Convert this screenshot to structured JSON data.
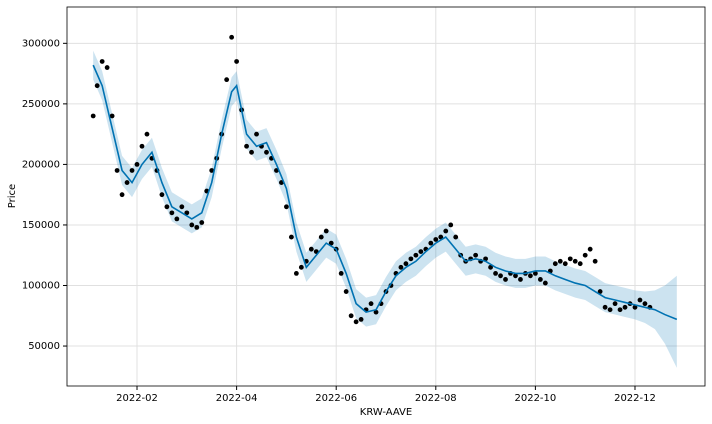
{
  "chart_data": {
    "type": "line",
    "xlabel": "KRW-AAVE",
    "ylabel": "Price",
    "xlim": [
      0.594,
      13.406
    ],
    "ylim": [
      17000,
      330000
    ],
    "xticks": [
      {
        "value": 2,
        "label": "2022-02"
      },
      {
        "value": 4,
        "label": "2022-04"
      },
      {
        "value": 6,
        "label": "2022-06"
      },
      {
        "value": 8,
        "label": "2022-08"
      },
      {
        "value": 10,
        "label": "2022-10"
      },
      {
        "value": 12,
        "label": "2022-12"
      }
    ],
    "yticks": [
      50000,
      100000,
      150000,
      200000,
      250000,
      300000
    ],
    "grid": true,
    "series": [
      {
        "type": "band",
        "color": "#0072b2",
        "x": [
          1.12,
          1.3,
          1.5,
          1.7,
          1.9,
          2.1,
          2.3,
          2.5,
          2.7,
          2.9,
          3.1,
          3.3,
          3.5,
          3.7,
          3.9,
          4.0,
          4.2,
          4.4,
          4.6,
          4.8,
          5.0,
          5.2,
          5.4,
          5.6,
          5.8,
          6.0,
          6.2,
          6.4,
          6.6,
          6.8,
          7.0,
          7.2,
          7.4,
          7.6,
          7.8,
          8.0,
          8.2,
          8.4,
          8.6,
          8.8,
          9.0,
          9.2,
          9.4,
          9.6,
          9.8,
          10.0,
          10.2,
          10.4,
          10.6,
          10.8,
          11.0,
          11.2,
          11.4,
          11.6,
          11.8,
          12.0,
          12.2,
          12.4,
          12.6,
          12.84
        ],
        "upper": [
          294000,
          277000,
          242000,
          207000,
          197000,
          212000,
          222000,
          197000,
          177000,
          172000,
          167000,
          172000,
          197000,
          237000,
          272000,
          277000,
          237000,
          227000,
          230000,
          212000,
          192000,
          152000,
          127000,
          137000,
          147000,
          142000,
          122000,
          97000,
          90000,
          92000,
          107000,
          120000,
          127000,
          132000,
          140000,
          147000,
          152000,
          142000,
          132000,
          134000,
          132000,
          127000,
          124000,
          122000,
          122000,
          124000,
          124000,
          120000,
          117000,
          114000,
          112000,
          107000,
          102000,
          100000,
          98000,
          96000,
          95000,
          96000,
          100000,
          108000
        ],
        "lower": [
          270000,
          253000,
          218000,
          183000,
          173000,
          188000,
          198000,
          173000,
          153000,
          148000,
          143000,
          148000,
          173000,
          213000,
          248000,
          253000,
          213000,
          203000,
          206000,
          188000,
          168000,
          128000,
          103000,
          113000,
          123000,
          118000,
          98000,
          73000,
          66000,
          68000,
          83000,
          96000,
          103000,
          108000,
          116000,
          123000,
          128000,
          118000,
          108000,
          110000,
          108000,
          103000,
          100000,
          98000,
          98000,
          100000,
          100000,
          96000,
          93000,
          90000,
          88000,
          83000,
          78000,
          76000,
          74000,
          72000,
          69000,
          64000,
          52000,
          32000
        ]
      },
      {
        "type": "scatter",
        "color": "#000000",
        "x": [
          1.12,
          1.2,
          1.3,
          1.4,
          1.5,
          1.6,
          1.7,
          1.8,
          1.9,
          2.0,
          2.1,
          2.2,
          2.3,
          2.4,
          2.5,
          2.6,
          2.7,
          2.8,
          2.9,
          3.0,
          3.1,
          3.2,
          3.3,
          3.4,
          3.5,
          3.6,
          3.7,
          3.8,
          3.9,
          4.0,
          4.1,
          4.2,
          4.3,
          4.4,
          4.5,
          4.6,
          4.7,
          4.8,
          4.9,
          5.0,
          5.1,
          5.2,
          5.3,
          5.4,
          5.5,
          5.6,
          5.7,
          5.8,
          5.9,
          6.0,
          6.1,
          6.2,
          6.3,
          6.4,
          6.5,
          6.6,
          6.7,
          6.8,
          6.9,
          7.0,
          7.1,
          7.2,
          7.3,
          7.4,
          7.5,
          7.6,
          7.7,
          7.8,
          7.9,
          8.0,
          8.1,
          8.2,
          8.3,
          8.4,
          8.5,
          8.6,
          8.7,
          8.8,
          8.9,
          9.0,
          9.1,
          9.2,
          9.3,
          9.4,
          9.5,
          9.6,
          9.7,
          9.8,
          9.9,
          10.0,
          10.1,
          10.2,
          10.3,
          10.4,
          10.5,
          10.6,
          10.7,
          10.8,
          10.9,
          11.0,
          11.1,
          11.2,
          11.3,
          11.4,
          11.5,
          11.6,
          11.7,
          11.8,
          11.9,
          12.0,
          12.1,
          12.2,
          12.3
        ],
        "values": [
          240000,
          265000,
          285000,
          280000,
          240000,
          195000,
          175000,
          185000,
          195000,
          200000,
          215000,
          225000,
          205000,
          195000,
          175000,
          165000,
          160000,
          155000,
          165000,
          160000,
          150000,
          148000,
          152000,
          178000,
          195000,
          205000,
          225000,
          270000,
          305000,
          285000,
          245000,
          215000,
          210000,
          225000,
          215000,
          210000,
          205000,
          195000,
          185000,
          165000,
          140000,
          110000,
          115000,
          120000,
          130000,
          128000,
          140000,
          145000,
          135000,
          130000,
          110000,
          95000,
          75000,
          70000,
          72000,
          80000,
          85000,
          78000,
          85000,
          95000,
          100000,
          110000,
          115000,
          118000,
          122000,
          125000,
          128000,
          130000,
          135000,
          138000,
          140000,
          145000,
          150000,
          140000,
          125000,
          120000,
          122000,
          125000,
          120000,
          122000,
          115000,
          110000,
          108000,
          105000,
          110000,
          108000,
          105000,
          110000,
          108000,
          110000,
          105000,
          102000,
          112000,
          118000,
          120000,
          118000,
          122000,
          120000,
          118000,
          125000,
          130000,
          120000,
          95000,
          82000,
          80000,
          85000,
          80000,
          82000,
          85000,
          82000,
          88000,
          85000,
          82000
        ]
      },
      {
        "type": "line",
        "color": "#0072b2",
        "x": [
          1.12,
          1.3,
          1.5,
          1.7,
          1.9,
          2.1,
          2.3,
          2.5,
          2.7,
          2.9,
          3.1,
          3.3,
          3.5,
          3.7,
          3.9,
          4.0,
          4.2,
          4.4,
          4.6,
          4.8,
          5.0,
          5.2,
          5.4,
          5.6,
          5.8,
          6.0,
          6.2,
          6.4,
          6.6,
          6.8,
          7.0,
          7.2,
          7.4,
          7.6,
          7.8,
          8.0,
          8.2,
          8.4,
          8.6,
          8.8,
          9.0,
          9.2,
          9.4,
          9.6,
          9.8,
          10.0,
          10.2,
          10.4,
          10.6,
          10.8,
          11.0,
          11.2,
          11.4,
          11.6,
          11.8,
          12.0,
          12.2,
          12.4,
          12.6,
          12.84
        ],
        "values": [
          282000,
          265000,
          230000,
          195000,
          185000,
          200000,
          210000,
          185000,
          165000,
          160000,
          155000,
          160000,
          185000,
          225000,
          260000,
          265000,
          225000,
          215000,
          218000,
          200000,
          180000,
          140000,
          115000,
          125000,
          135000,
          130000,
          110000,
          85000,
          78000,
          80000,
          95000,
          108000,
          115000,
          120000,
          128000,
          135000,
          140000,
          130000,
          120000,
          122000,
          120000,
          115000,
          112000,
          110000,
          110000,
          112000,
          112000,
          108000,
          105000,
          102000,
          100000,
          95000,
          90000,
          88000,
          86000,
          84000,
          82000,
          80000,
          76000,
          72000
        ]
      }
    ]
  }
}
